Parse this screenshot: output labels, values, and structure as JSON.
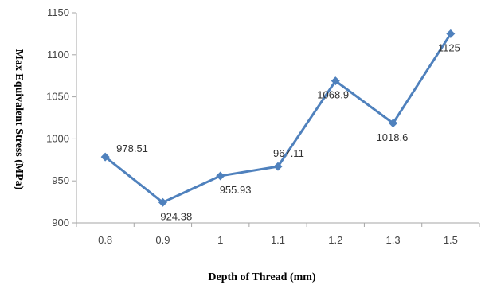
{
  "chart_data": {
    "type": "line",
    "categories": [
      "0.8",
      "0.9",
      "1",
      "1.1",
      "1.2",
      "1.3",
      "1.5"
    ],
    "values": [
      978.51,
      924.38,
      955.93,
      967.11,
      1068.9,
      1018.6,
      1125
    ],
    "data_labels": [
      "978.51",
      "924.38",
      "955.93",
      "967.11",
      "1068.9",
      "1018.6",
      "1125"
    ],
    "xlabel": "Depth of Thread (mm)",
    "ylabel": "Max Equivalent Stress (MPa)",
    "ylim": [
      900,
      1150
    ],
    "yticks": [
      900,
      950,
      1000,
      1050,
      1100,
      1150
    ],
    "grid": false,
    "legend": "none",
    "marker": "diamond",
    "colors": {
      "line": "#4f81bd",
      "axis": "#a6a6a6"
    }
  }
}
